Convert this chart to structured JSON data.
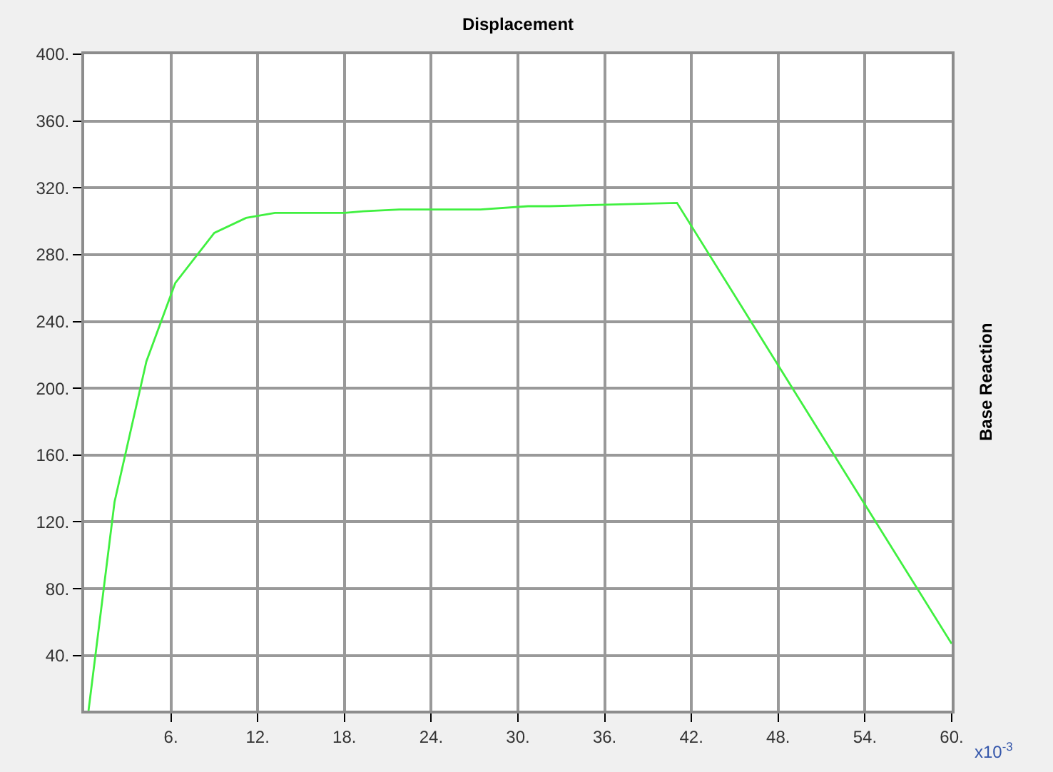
{
  "chart_data": {
    "type": "line",
    "title": "Displacement",
    "ylabel": "Base Reaction",
    "annotations": [
      "x10$^{-3}$"
    ],
    "x": [
      0.3,
      2.1,
      4.3,
      6.3,
      9.0,
      11.2,
      13.2,
      18.0,
      19.3,
      21.8,
      23.8,
      27.4,
      30.7,
      32.2,
      36.6,
      41.0,
      60.0
    ],
    "series": [
      {
        "color": "#40f040",
        "values": [
          7,
          132,
          216,
          263,
          293,
          302,
          305,
          305,
          306,
          307,
          307,
          307,
          309,
          309,
          310,
          311,
          47
        ]
      }
    ],
    "xlim": [
      0,
      60
    ],
    "ylim": [
      7,
      400
    ],
    "xticks": [
      {
        "value": 6,
        "label": "6."
      },
      {
        "value": 12,
        "label": "12."
      },
      {
        "value": 18,
        "label": "18."
      },
      {
        "value": 24,
        "label": "24."
      },
      {
        "value": 30,
        "label": "30."
      },
      {
        "value": 36,
        "label": "36."
      },
      {
        "value": 42,
        "label": "42."
      },
      {
        "value": 48,
        "label": "48."
      },
      {
        "value": 54,
        "label": "54."
      },
      {
        "value": 60,
        "label": "60."
      }
    ],
    "yticks": [
      {
        "value": 40,
        "label": "40."
      },
      {
        "value": 80,
        "label": "80."
      },
      {
        "value": 120,
        "label": "120."
      },
      {
        "value": 160,
        "label": "160."
      },
      {
        "value": 200,
        "label": "200."
      },
      {
        "value": 240,
        "label": "240."
      },
      {
        "value": 280,
        "label": "280."
      },
      {
        "value": 320,
        "label": "320."
      },
      {
        "value": 360,
        "label": "360."
      },
      {
        "value": 400,
        "label": "400."
      }
    ],
    "grid": true,
    "marker": "none",
    "line_style": "solid"
  }
}
